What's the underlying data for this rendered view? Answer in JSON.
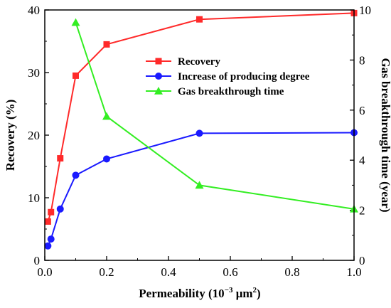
{
  "chart_data": {
    "type": "line",
    "x_axis": {
      "label_main": "Permeability (10",
      "label_sup": "−3",
      "label_end": " μm",
      "label_sup2": "2",
      "label_close": ")",
      "range": [
        0,
        1.0
      ],
      "ticks": [
        0.0,
        0.2,
        0.4,
        0.6,
        0.8,
        1.0
      ],
      "tick_labels": [
        "0.0",
        "0.2",
        "0.4",
        "0.6",
        "0.8",
        "1.0"
      ]
    },
    "y_left": {
      "label": "Recovery (%)",
      "range": [
        0,
        40
      ],
      "ticks": [
        0,
        10,
        20,
        30,
        40
      ],
      "tick_labels": [
        "0",
        "10",
        "20",
        "30",
        "40"
      ]
    },
    "y_right": {
      "label": "Gas breakthrough time (year)",
      "range": [
        0,
        10
      ],
      "ticks": [
        0,
        2,
        4,
        6,
        8,
        10
      ],
      "tick_labels": [
        "0",
        "2",
        "4",
        "6",
        "8",
        "10"
      ]
    },
    "legend_position": "top-right",
    "series": [
      {
        "name": "Recovery",
        "axis": "left",
        "marker": "square",
        "color": "#ff2a2a",
        "points": [
          [
            0.01,
            6.2
          ],
          [
            0.02,
            7.7
          ],
          [
            0.05,
            16.3
          ],
          [
            0.1,
            29.5
          ],
          [
            0.2,
            34.5
          ],
          [
            0.5,
            38.5
          ],
          [
            1.0,
            39.5
          ]
        ]
      },
      {
        "name": "Increase of producing degree",
        "axis": "left",
        "marker": "circle",
        "color": "#1a1aff",
        "points": [
          [
            0.01,
            2.3
          ],
          [
            0.02,
            3.4
          ],
          [
            0.05,
            8.2
          ],
          [
            0.1,
            13.6
          ],
          [
            0.2,
            16.2
          ],
          [
            0.5,
            20.3
          ],
          [
            1.0,
            20.4
          ]
        ]
      },
      {
        "name": "Gas breakthrough time",
        "axis": "right",
        "marker": "triangle",
        "color": "#33ee22",
        "points": [
          [
            0.1,
            9.5
          ],
          [
            0.2,
            5.75
          ],
          [
            0.5,
            3.0
          ],
          [
            1.0,
            2.05
          ]
        ]
      }
    ]
  }
}
